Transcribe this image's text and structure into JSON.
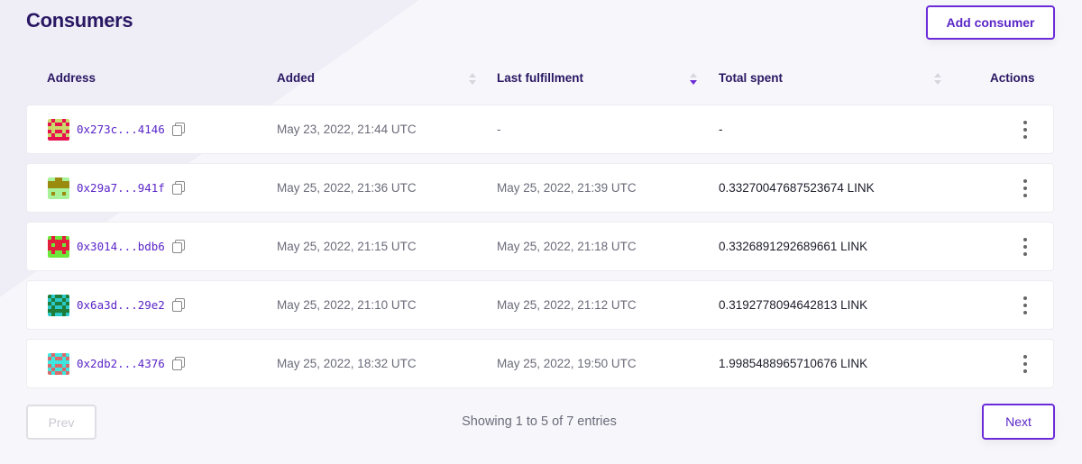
{
  "page": {
    "title": "Consumers",
    "add_button": "Add consumer"
  },
  "table": {
    "columns": [
      {
        "label": "Address",
        "sortable": false
      },
      {
        "label": "Added",
        "sortable": true,
        "sort": "none"
      },
      {
        "label": "Last fulfillment",
        "sortable": true,
        "sort": "descending"
      },
      {
        "label": "Total spent",
        "sortable": true,
        "sort": "none"
      },
      {
        "label": "Actions",
        "sortable": false
      }
    ],
    "rows": [
      {
        "address": "0x273c...4146",
        "added": "May 23, 2022, 21:44 UTC",
        "last_fulfillment": "-",
        "total_spent": "-",
        "avatar_colors": [
          "#e8114f",
          "#c9d96a"
        ]
      },
      {
        "address": "0x29a7...941f",
        "added": "May 25, 2022, 21:36 UTC",
        "last_fulfillment": "May 25, 2022, 21:39 UTC",
        "total_spent": "0.33270047687523674 LINK",
        "avatar_colors": [
          "#a8f29a",
          "#9b8a10"
        ]
      },
      {
        "address": "0x3014...bdb6",
        "added": "May 25, 2022, 21:15 UTC",
        "last_fulfillment": "May 25, 2022, 21:18 UTC",
        "total_spent": "0.3326891292689661 LINK",
        "avatar_colors": [
          "#6de83a",
          "#e21e3c"
        ]
      },
      {
        "address": "0x6a3d...29e2",
        "added": "May 25, 2022, 21:10 UTC",
        "last_fulfillment": "May 25, 2022, 21:12 UTC",
        "total_spent": "0.3192778094642813 LINK",
        "avatar_colors": [
          "#2bc9c9",
          "#1f7d3a"
        ]
      },
      {
        "address": "0x2db2...4376",
        "added": "May 25, 2022, 18:32 UTC",
        "last_fulfillment": "May 25, 2022, 19:50 UTC",
        "total_spent": "1.9985488965710676 LINK",
        "avatar_colors": [
          "#3ee6e0",
          "#d86a6a"
        ]
      }
    ]
  },
  "pagination": {
    "prev": "Prev",
    "next": "Next",
    "prev_disabled": true,
    "status": "Showing 1 to 5 of 7 entries"
  },
  "colors": {
    "accent": "#6c2bd9",
    "title": "#2a1763"
  }
}
